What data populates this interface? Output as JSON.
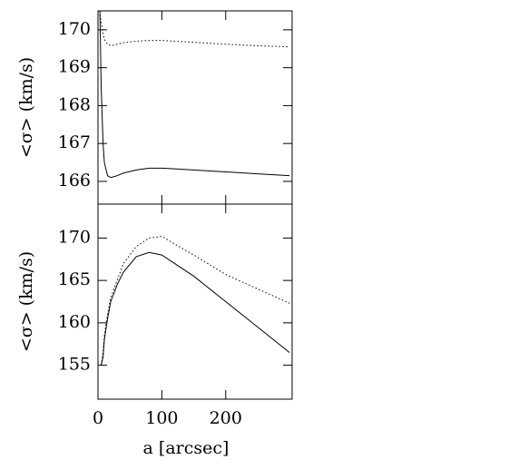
{
  "chart_data": [
    {
      "type": "line",
      "ylabel": "<σ> (km/s)",
      "x": [
        3,
        5,
        8,
        10,
        15,
        20,
        30,
        40,
        60,
        80,
        100,
        120,
        150,
        200,
        250,
        300
      ],
      "xlim": [
        0,
        304
      ],
      "ylim": [
        165.4,
        170.5
      ],
      "yticks": [
        166,
        167,
        168,
        169,
        170
      ],
      "series": [
        {
          "style": "solid",
          "color": "#000000",
          "values": [
            170.5,
            168.5,
            167,
            166.5,
            166.15,
            166.1,
            166.15,
            166.22,
            166.3,
            166.35,
            166.35,
            166.33,
            166.3,
            166.25,
            166.2,
            166.15
          ]
        },
        {
          "style": "dotted",
          "color": "#000000",
          "values": [
            170.4,
            170.2,
            169.9,
            169.75,
            169.62,
            169.58,
            169.62,
            169.66,
            169.7,
            169.72,
            169.72,
            169.7,
            169.67,
            169.62,
            169.58,
            169.55
          ]
        }
      ]
    },
    {
      "type": "line",
      "ylabel": "<σ> (km/s)",
      "xlabel": "a [arcsec]",
      "x": [
        5,
        8,
        10,
        15,
        20,
        30,
        40,
        60,
        80,
        100,
        120,
        150,
        200,
        250,
        300
      ],
      "xlim": [
        0,
        304
      ],
      "xticks": [
        0,
        100,
        200
      ],
      "ylim": [
        151,
        174
      ],
      "yticks": [
        155,
        160,
        165,
        170
      ],
      "series": [
        {
          "style": "solid",
          "color": "#000000",
          "values": [
            155,
            156,
            158,
            160.5,
            162.5,
            164.5,
            166,
            167.8,
            168.3,
            168,
            167,
            165.5,
            162.5,
            159.5,
            156.5
          ]
        },
        {
          "style": "dotted",
          "color": "#000000",
          "values": [
            155,
            156.5,
            158.5,
            161,
            163,
            165,
            167,
            169,
            170,
            170.2,
            169.3,
            168,
            165.7,
            164,
            162.3
          ]
        }
      ]
    }
  ]
}
